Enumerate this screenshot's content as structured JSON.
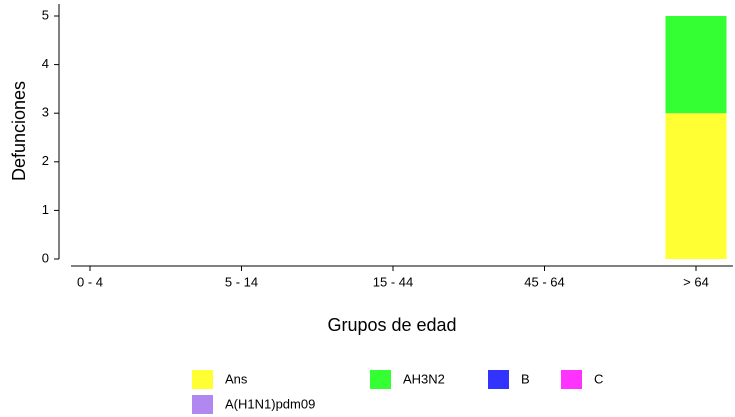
{
  "chart_data": {
    "type": "stacked-bar",
    "x_label": "Grupos de edad",
    "y_label": "Defunciones",
    "categories": [
      "0 - 4",
      "5 - 14",
      "15 - 44",
      "45 - 64",
      "> 64"
    ],
    "series": [
      {
        "name": "Ans",
        "color": "#ffff33",
        "values": [
          0,
          0,
          0,
          0,
          3
        ]
      },
      {
        "name": "AH3N2",
        "color": "#33ff33",
        "values": [
          0,
          0,
          0,
          0,
          2
        ]
      },
      {
        "name": "B",
        "color": "#3333ff",
        "values": [
          0,
          0,
          0,
          0,
          0
        ]
      },
      {
        "name": "C",
        "color": "#ff33ff",
        "values": [
          0,
          0,
          0,
          0,
          0
        ]
      },
      {
        "name": "A(H1N1)pdm09",
        "color": "#b088f0",
        "values": [
          0,
          0,
          0,
          0,
          0
        ]
      }
    ],
    "ylim": [
      0,
      5
    ],
    "yticks": [
      0,
      1,
      2,
      3,
      4,
      5
    ]
  }
}
